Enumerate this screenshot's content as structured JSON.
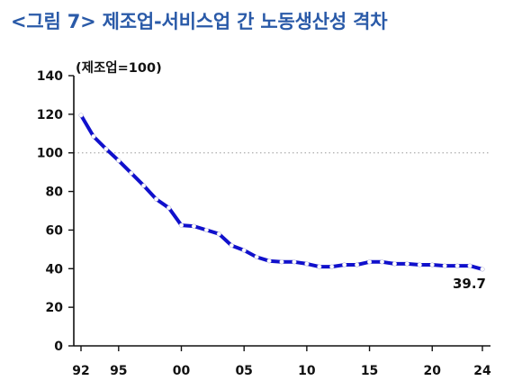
{
  "title": "<그림 7> 제조업-서비스업 간 노동생산성 격차",
  "chart_data": {
    "type": "line",
    "unit_label": "(제조업=100)",
    "x": [
      1992,
      1993,
      1994,
      1995,
      1996,
      1997,
      1998,
      1999,
      2000,
      2001,
      2002,
      2003,
      2004,
      2005,
      2006,
      2007,
      2008,
      2009,
      2010,
      2011,
      2012,
      2013,
      2014,
      2015,
      2016,
      2017,
      2018,
      2019,
      2020,
      2021,
      2022,
      2023,
      2024
    ],
    "series": [
      {
        "values": [
          119.5,
          108.5,
          102.0,
          96.0,
          89.5,
          83.0,
          76.0,
          71.5,
          62.5,
          62.0,
          60.0,
          58.0,
          52.0,
          49.5,
          46.0,
          44.0,
          43.5,
          43.5,
          42.5,
          41.0,
          41.0,
          42.0,
          42.0,
          43.5,
          43.5,
          42.5,
          42.5,
          42.0,
          42.0,
          41.5,
          41.5,
          41.5,
          39.7
        ],
        "color": "#1010cc"
      }
    ],
    "xticks": [
      {
        "value": 1992,
        "label": "92"
      },
      {
        "value": 1995,
        "label": "95"
      },
      {
        "value": 2000,
        "label": "00"
      },
      {
        "value": 2005,
        "label": "05"
      },
      {
        "value": 2010,
        "label": "10"
      },
      {
        "value": 2015,
        "label": "15"
      },
      {
        "value": 2020,
        "label": "20"
      },
      {
        "value": 2024,
        "label": "24"
      }
    ],
    "yticks": [
      0,
      20,
      40,
      60,
      80,
      100,
      120,
      140
    ],
    "ylim": [
      0,
      140
    ],
    "xlim": [
      1992,
      2024
    ],
    "reference_line": {
      "value": 100,
      "style": "dotted"
    },
    "annotation": {
      "x": 2024,
      "y": 39.7,
      "label": "39.7"
    },
    "grid": false,
    "legend": "none"
  }
}
